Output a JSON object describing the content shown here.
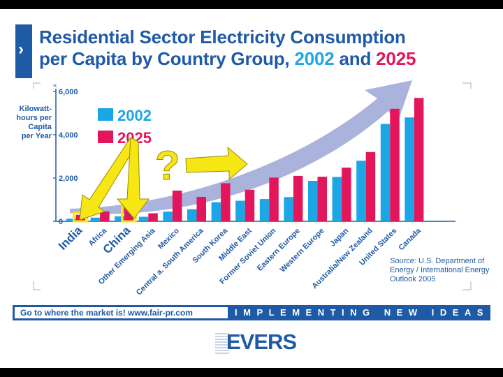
{
  "title": {
    "line1": "Residential Sector Electricity Consumption",
    "line2_prefix": "per Capita by Country Group, ",
    "year1": "2002",
    "line2_and": " and ",
    "year2": "2025"
  },
  "ylabel_lines": [
    "Kilowatt-",
    "hours per",
    "Capita",
    "per Year"
  ],
  "colors": {
    "s2002": "#1ca6e6",
    "s2025": "#e3165b",
    "brand": "#1f5aa6",
    "arrow": "#a9b3dc",
    "callout": "#f5e614"
  },
  "chart_data": {
    "type": "bar",
    "categories": [
      "India",
      "Africa",
      "China",
      "Other Emerging Asia",
      "Mexico",
      "Central a. South America",
      "South Korea",
      "Middle East",
      "Former Soviet Union",
      "Eastern Europe",
      "Western Europe",
      "Japan",
      "Australia/New Zealand",
      "United States",
      "Canada"
    ],
    "series": [
      {
        "name": "2002",
        "values": [
          120,
          170,
          230,
          210,
          450,
          560,
          880,
          950,
          1030,
          1120,
          1870,
          2050,
          2800,
          4500,
          4800
        ]
      },
      {
        "name": "2025",
        "values": [
          300,
          460,
          700,
          370,
          1420,
          1130,
          1760,
          1460,
          2020,
          2100,
          2060,
          2480,
          3200,
          5200,
          5700
        ]
      }
    ],
    "yticks": [
      "6,000",
      "4,000",
      "2,000",
      "0"
    ],
    "ylim": [
      0,
      6000
    ],
    "ylabel": "Kilowatt-hours per Capita per Year",
    "legend": [
      "2002",
      "2025"
    ],
    "legend_position": "top-left",
    "highlighted": [
      "India",
      "China"
    ]
  },
  "source": {
    "label": "Source:",
    "text": "U.S. Department of Energy / International Energy Outlook 2005"
  },
  "banner": {
    "left_text": "Go to where the market is!   www.fair-pr.com",
    "right_text": "IMPLEMENTING NEW IDEAS"
  },
  "logo_text": "EVERS"
}
